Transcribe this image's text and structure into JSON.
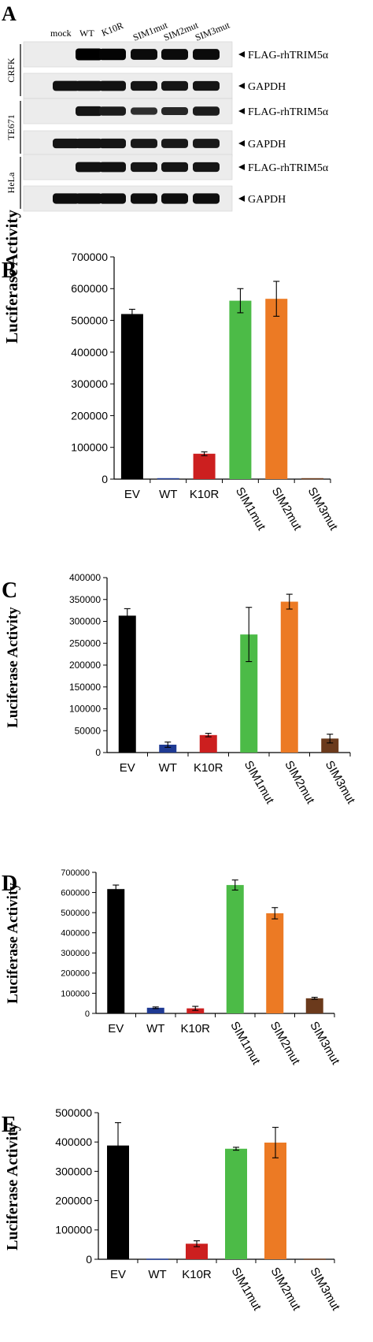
{
  "blot": {
    "panel_label": "A",
    "lanes": [
      "mock",
      "WT",
      "K10R",
      "SIM1mut",
      "SIM2mut",
      "SIM3mut"
    ],
    "cell_lines": [
      {
        "name": "CRFK",
        "rows": [
          {
            "label": "FLAG-rhTRIM5α",
            "intensity": [
              0,
              1.0,
              0.95,
              0.85,
              0.85,
              0.85
            ]
          },
          {
            "label": "GAPDH",
            "intensity": [
              0.75,
              0.75,
              0.75,
              0.7,
              0.7,
              0.7
            ]
          }
        ]
      },
      {
        "name": "TE671",
        "rows": [
          {
            "label": "FLAG-rhTRIM5α",
            "intensity": [
              0,
              0.7,
              0.6,
              0.35,
              0.45,
              0.6
            ]
          },
          {
            "label": "GAPDH",
            "intensity": [
              0.7,
              0.7,
              0.7,
              0.65,
              0.65,
              0.65
            ]
          }
        ]
      },
      {
        "name": "HeLa",
        "rows": [
          {
            "label": "FLAG-rhTRIM5α",
            "intensity": [
              0,
              0.75,
              0.75,
              0.7,
              0.7,
              0.7
            ]
          },
          {
            "label": "GAPDH",
            "intensity": [
              0.8,
              0.8,
              0.8,
              0.8,
              0.8,
              0.8
            ]
          }
        ]
      }
    ]
  },
  "chart_data": [
    {
      "panel_label": "B",
      "type": "bar",
      "ylabel": "Luciferase Activity",
      "categories": [
        "EV",
        "WT",
        "K10R",
        "SIM1mut",
        "SIM2mut",
        "SIM3mut"
      ],
      "values": [
        520000,
        3000,
        80000,
        562000,
        568000,
        3000
      ],
      "errors": [
        15000,
        0,
        6000,
        38000,
        55000,
        0
      ],
      "colors": [
        "#000000",
        "#1f3a93",
        "#cc1f1f",
        "#4cbb47",
        "#ec7a24",
        "#6b3a1c"
      ],
      "ylim": [
        0,
        700000
      ],
      "yticks": [
        0,
        100000,
        200000,
        300000,
        400000,
        500000,
        600000,
        700000
      ],
      "rotate_labels_from": 3
    },
    {
      "panel_label": "C",
      "type": "bar",
      "ylabel": "Luciferase Activity",
      "categories": [
        "EV",
        "WT",
        "K10R",
        "SIM1mut",
        "SIM2mut",
        "SIM3mut"
      ],
      "values": [
        313000,
        18000,
        40000,
        270000,
        345000,
        32000
      ],
      "errors": [
        16000,
        6000,
        4000,
        62000,
        17000,
        10000
      ],
      "colors": [
        "#000000",
        "#1f3a93",
        "#cc1f1f",
        "#4cbb47",
        "#ec7a24",
        "#6b3a1c"
      ],
      "ylim": [
        0,
        400000
      ],
      "yticks": [
        0,
        50000,
        100000,
        150000,
        200000,
        250000,
        300000,
        350000,
        400000
      ],
      "rotate_labels_from": 3
    },
    {
      "panel_label": "D",
      "type": "bar",
      "ylabel": "Luciferase Activity",
      "categories": [
        "EV",
        "WT",
        "K10R",
        "SIM1mut",
        "SIM2mut",
        "SIM3mut"
      ],
      "values": [
        617000,
        28000,
        25000,
        637000,
        497000,
        75000
      ],
      "errors": [
        20000,
        4000,
        10000,
        25000,
        28000,
        5000
      ],
      "colors": [
        "#000000",
        "#1f3a93",
        "#cc1f1f",
        "#4cbb47",
        "#ec7a24",
        "#6b3a1c"
      ],
      "ylim": [
        0,
        700000
      ],
      "yticks": [
        0,
        100000,
        200000,
        300000,
        400000,
        500000,
        600000,
        700000
      ],
      "rotate_labels_from": 3
    },
    {
      "panel_label": "E",
      "type": "bar",
      "ylabel": "Luciferase Activity",
      "categories": [
        "EV",
        "WT",
        "K10R",
        "SIM1mut",
        "SIM2mut",
        "SIM3mut"
      ],
      "values": [
        388000,
        2000,
        53000,
        377000,
        398000,
        2000
      ],
      "errors": [
        78000,
        0,
        10000,
        5000,
        52000,
        0
      ],
      "colors": [
        "#000000",
        "#1f3a93",
        "#cc1f1f",
        "#4cbb47",
        "#ec7a24",
        "#6b3a1c"
      ],
      "ylim": [
        0,
        500000
      ],
      "yticks": [
        0,
        100000,
        200000,
        300000,
        400000,
        500000
      ],
      "rotate_labels_from": 3
    }
  ]
}
